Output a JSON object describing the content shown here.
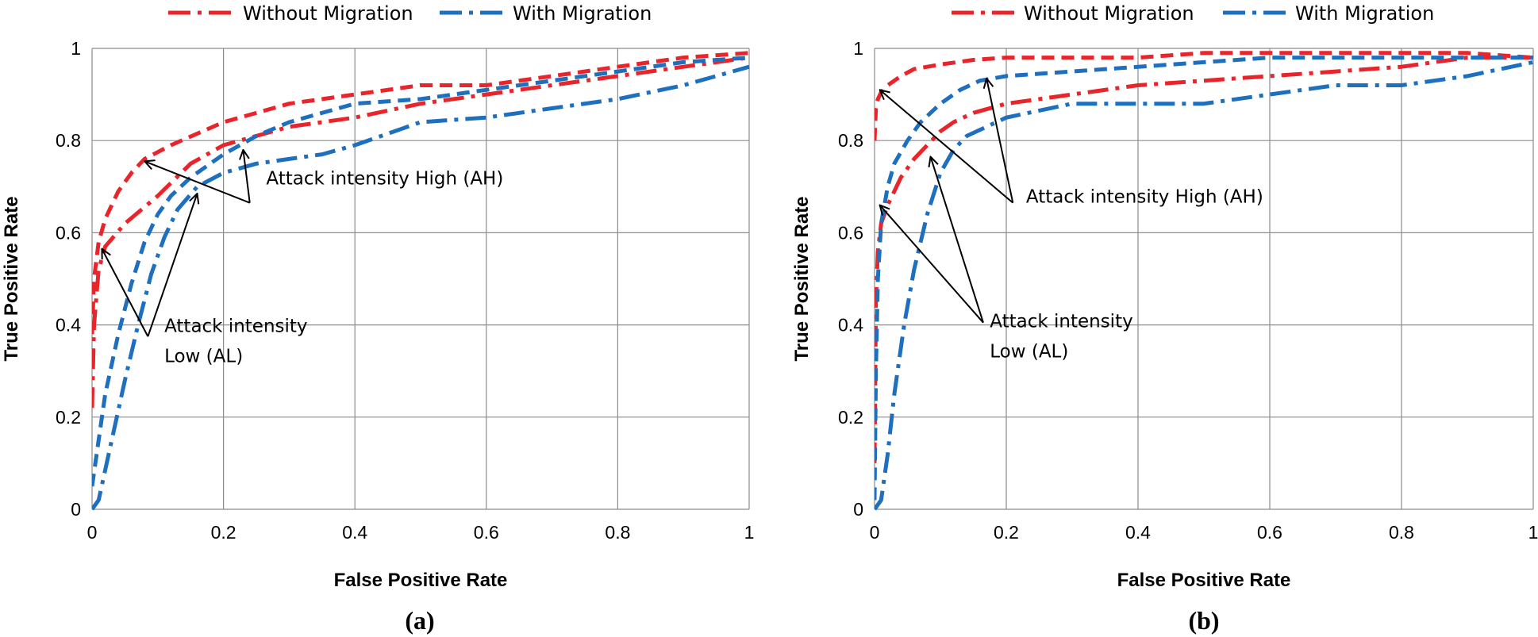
{
  "legend": [
    {
      "label": "Without Migration",
      "color": "#e8252b",
      "dash": "dashdot"
    },
    {
      "label": "With Migration",
      "color": "#1f6fbf",
      "dash": "dashdot"
    }
  ],
  "chart_data": [
    {
      "type": "line",
      "panel_label": "(a)",
      "title": "",
      "xlabel": "False Positive Rate",
      "ylabel": "True Positive Rate",
      "xlim": [
        0,
        1
      ],
      "ylim": [
        0,
        1
      ],
      "xticks": [
        "0",
        "0.2",
        "0.4",
        "0.6",
        "0.8",
        "1"
      ],
      "yticks": [
        "0",
        "0.2",
        "0.4",
        "0.6",
        "0.8",
        "1"
      ],
      "grid": true,
      "series": [
        {
          "name": "Without Migration (AH)",
          "color": "#e8252b",
          "style": "dash",
          "x": [
            0,
            0.003,
            0.01,
            0.02,
            0.04,
            0.06,
            0.08,
            0.12,
            0.2,
            0.3,
            0.4,
            0.5,
            0.6,
            0.7,
            0.8,
            0.9,
            1.0
          ],
          "y": [
            0.38,
            0.5,
            0.58,
            0.63,
            0.69,
            0.73,
            0.76,
            0.79,
            0.84,
            0.88,
            0.9,
            0.92,
            0.92,
            0.94,
            0.96,
            0.98,
            0.99
          ]
        },
        {
          "name": "Without Migration (AL)",
          "color": "#e8252b",
          "style": "dashdot",
          "x": [
            0,
            0.003,
            0.01,
            0.02,
            0.05,
            0.1,
            0.15,
            0.2,
            0.3,
            0.4,
            0.5,
            0.6,
            0.7,
            0.8,
            0.9,
            1.0
          ],
          "y": [
            0.22,
            0.4,
            0.52,
            0.57,
            0.62,
            0.68,
            0.75,
            0.79,
            0.83,
            0.85,
            0.88,
            0.9,
            0.92,
            0.94,
            0.96,
            0.98
          ]
        },
        {
          "name": "With Migration (AH)",
          "color": "#1f6fbf",
          "style": "dash",
          "x": [
            0,
            0.01,
            0.02,
            0.04,
            0.06,
            0.08,
            0.1,
            0.12,
            0.15,
            0.2,
            0.25,
            0.3,
            0.4,
            0.5,
            0.6,
            0.7,
            0.8,
            0.9,
            1.0
          ],
          "y": [
            0.05,
            0.15,
            0.25,
            0.38,
            0.49,
            0.58,
            0.64,
            0.68,
            0.72,
            0.77,
            0.81,
            0.84,
            0.88,
            0.89,
            0.91,
            0.93,
            0.95,
            0.97,
            0.98
          ]
        },
        {
          "name": "With Migration (AL)",
          "color": "#1f6fbf",
          "style": "dashdot",
          "x": [
            0,
            0.01,
            0.03,
            0.05,
            0.07,
            0.09,
            0.11,
            0.13,
            0.16,
            0.2,
            0.25,
            0.3,
            0.35,
            0.4,
            0.5,
            0.6,
            0.7,
            0.8,
            0.9,
            1.0
          ],
          "y": [
            0,
            0.02,
            0.15,
            0.28,
            0.4,
            0.51,
            0.59,
            0.65,
            0.7,
            0.73,
            0.75,
            0.76,
            0.77,
            0.79,
            0.84,
            0.85,
            0.87,
            0.89,
            0.92,
            0.96
          ]
        }
      ],
      "annotations": [
        {
          "text": "Attack intensity High (AH)",
          "text_x": 0.265,
          "text_y": 0.705,
          "from": [
            0.24,
            0.665
          ],
          "to": [
            [
              0.08,
              0.755
            ],
            [
              0.23,
              0.78
            ]
          ]
        },
        {
          "text": "Attack intensity",
          "text2": "Low (AL)",
          "text_x": 0.11,
          "text_y": 0.385,
          "from": [
            0.085,
            0.375
          ],
          "to": [
            [
              0.015,
              0.565
            ],
            [
              0.16,
              0.685
            ]
          ]
        }
      ]
    },
    {
      "type": "line",
      "panel_label": "(b)",
      "title": "",
      "xlabel": "False Positive Rate",
      "ylabel": "True Positive Rate",
      "xlim": [
        0,
        1
      ],
      "ylim": [
        0,
        1
      ],
      "xticks": [
        "0",
        "0.2",
        "0.4",
        "0.6",
        "0.8",
        "1"
      ],
      "yticks": [
        "0",
        "0.2",
        "0.4",
        "0.6",
        "0.8",
        "1"
      ],
      "grid": true,
      "series": [
        {
          "name": "Without Migration (AH)",
          "color": "#e8252b",
          "style": "dash",
          "x": [
            0,
            0.002,
            0.005,
            0.01,
            0.02,
            0.04,
            0.06,
            0.1,
            0.15,
            0.2,
            0.3,
            0.4,
            0.5,
            0.6,
            0.7,
            0.8,
            0.9,
            1.0
          ],
          "y": [
            0.8,
            0.87,
            0.89,
            0.905,
            0.92,
            0.94,
            0.955,
            0.965,
            0.975,
            0.98,
            0.98,
            0.98,
            0.99,
            0.99,
            0.99,
            0.99,
            0.99,
            0.98
          ]
        },
        {
          "name": "Without Migration (AL)",
          "color": "#e8252b",
          "style": "dashdot",
          "x": [
            0,
            0.002,
            0.005,
            0.01,
            0.02,
            0.04,
            0.06,
            0.08,
            0.1,
            0.12,
            0.15,
            0.2,
            0.3,
            0.4,
            0.5,
            0.6,
            0.7,
            0.8,
            0.9,
            1.0
          ],
          "y": [
            0.1,
            0.45,
            0.56,
            0.62,
            0.66,
            0.72,
            0.76,
            0.79,
            0.82,
            0.84,
            0.86,
            0.88,
            0.9,
            0.92,
            0.93,
            0.94,
            0.95,
            0.96,
            0.98,
            0.98
          ]
        },
        {
          "name": "With Migration (AH)",
          "color": "#1f6fbf",
          "style": "dash",
          "x": [
            0,
            0.002,
            0.005,
            0.01,
            0.02,
            0.03,
            0.05,
            0.07,
            0.1,
            0.13,
            0.16,
            0.2,
            0.3,
            0.4,
            0.5,
            0.6,
            0.7,
            0.8,
            0.9,
            1.0
          ],
          "y": [
            0.02,
            0.3,
            0.5,
            0.62,
            0.7,
            0.75,
            0.8,
            0.84,
            0.88,
            0.91,
            0.93,
            0.94,
            0.95,
            0.96,
            0.97,
            0.98,
            0.98,
            0.98,
            0.98,
            0.98
          ]
        },
        {
          "name": "With Migration (AL)",
          "color": "#1f6fbf",
          "style": "dashdot",
          "x": [
            0,
            0.01,
            0.02,
            0.03,
            0.045,
            0.06,
            0.08,
            0.1,
            0.12,
            0.14,
            0.17,
            0.2,
            0.3,
            0.4,
            0.5,
            0.6,
            0.7,
            0.8,
            0.9,
            1.0
          ],
          "y": [
            0,
            0.02,
            0.12,
            0.25,
            0.4,
            0.52,
            0.64,
            0.73,
            0.78,
            0.81,
            0.83,
            0.85,
            0.88,
            0.88,
            0.88,
            0.9,
            0.92,
            0.92,
            0.94,
            0.97
          ]
        }
      ],
      "annotations": [
        {
          "text": "Attack intensity High (AH)",
          "text_x": 0.23,
          "text_y": 0.665,
          "from": [
            0.21,
            0.665
          ],
          "to": [
            [
              0.008,
              0.91
            ],
            [
              0.17,
              0.935
            ]
          ]
        },
        {
          "text": "Attack intensity",
          "text2": "Low (AL)",
          "text_x": 0.175,
          "text_y": 0.395,
          "from": [
            0.165,
            0.405
          ],
          "to": [
            [
              0.008,
              0.66
            ],
            [
              0.085,
              0.765
            ]
          ]
        }
      ]
    }
  ]
}
